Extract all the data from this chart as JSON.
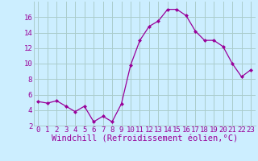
{
  "x": [
    0,
    1,
    2,
    3,
    4,
    5,
    6,
    7,
    8,
    9,
    10,
    11,
    12,
    13,
    14,
    15,
    16,
    17,
    18,
    19,
    20,
    21,
    22,
    23
  ],
  "y": [
    5.1,
    4.9,
    5.2,
    4.5,
    3.8,
    4.5,
    2.5,
    3.2,
    2.5,
    4.8,
    9.8,
    13.0,
    14.8,
    15.5,
    17.0,
    17.0,
    16.2,
    14.2,
    13.0,
    13.0,
    12.2,
    10.0,
    8.3,
    9.2
  ],
  "line_color": "#990099",
  "marker": "D",
  "marker_size": 2.0,
  "bg_color": "#cceeff",
  "grid_color": "#aacccc",
  "xlabel": "Windchill (Refroidissement éolien,°C)",
  "xlabel_color": "#990099",
  "ylim": [
    2,
    18
  ],
  "yticks": [
    2,
    4,
    6,
    8,
    10,
    12,
    14,
    16
  ],
  "xticks": [
    0,
    1,
    2,
    3,
    4,
    5,
    6,
    7,
    8,
    9,
    10,
    11,
    12,
    13,
    14,
    15,
    16,
    17,
    18,
    19,
    20,
    21,
    22,
    23
  ],
  "tick_label_color": "#990099",
  "tick_label_fontsize": 6.5,
  "xlabel_fontsize": 7.5
}
